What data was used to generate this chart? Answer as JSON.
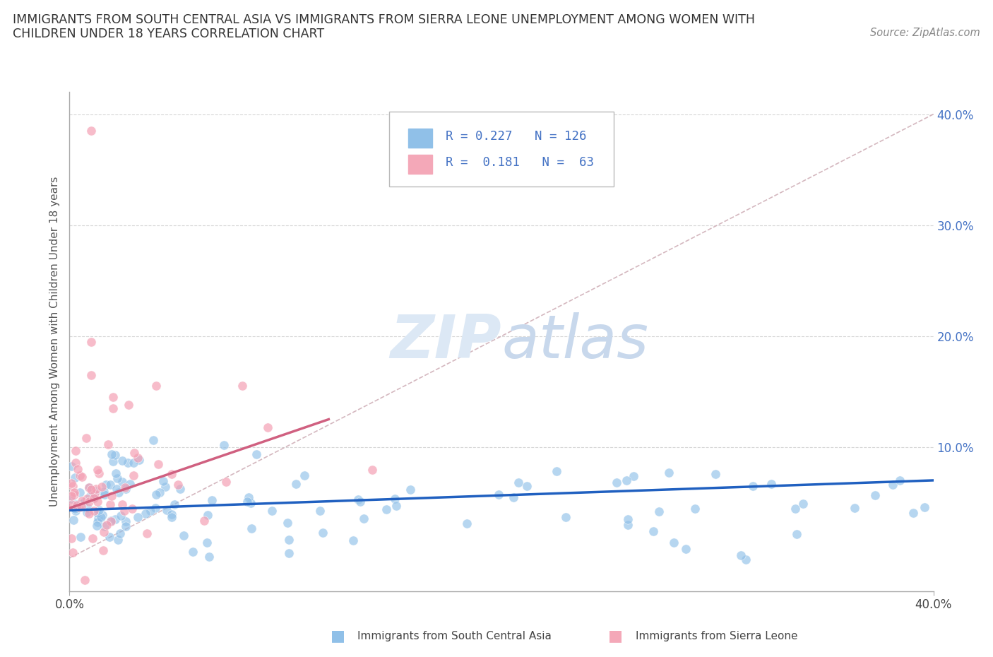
{
  "title_line1": "IMMIGRANTS FROM SOUTH CENTRAL ASIA VS IMMIGRANTS FROM SIERRA LEONE UNEMPLOYMENT AMONG WOMEN WITH",
  "title_line2": "CHILDREN UNDER 18 YEARS CORRELATION CHART",
  "source_text": "Source: ZipAtlas.com",
  "ylabel": "Unemployment Among Women with Children Under 18 years",
  "legend_color1": "#90c0e8",
  "legend_color2": "#f4a8b8",
  "watermark": "ZIPatlas",
  "blue_color": "#90c0e8",
  "pink_color": "#f4a0b4",
  "blue_line_color": "#2060c0",
  "pink_line_color": "#d06080",
  "diag_line_color": "#d0b0b8",
  "background_color": "#ffffff",
  "grid_color": "#cccccc",
  "xlim": [
    0.0,
    0.4
  ],
  "ylim": [
    -0.03,
    0.42
  ],
  "yticks": [
    0.1,
    0.2,
    0.3,
    0.4
  ],
  "ytick_labels": [
    "10.0%",
    "20.0%",
    "30.0%",
    "40.0%"
  ],
  "xtick_labels": [
    "0.0%",
    "40.0%"
  ],
  "legend1_r": "0.227",
  "legend1_n": "126",
  "legend2_r": "0.181",
  "legend2_n": "63",
  "bottom_legend1": "Immigrants from South Central Asia",
  "bottom_legend2": "Immigrants from Sierra Leone"
}
